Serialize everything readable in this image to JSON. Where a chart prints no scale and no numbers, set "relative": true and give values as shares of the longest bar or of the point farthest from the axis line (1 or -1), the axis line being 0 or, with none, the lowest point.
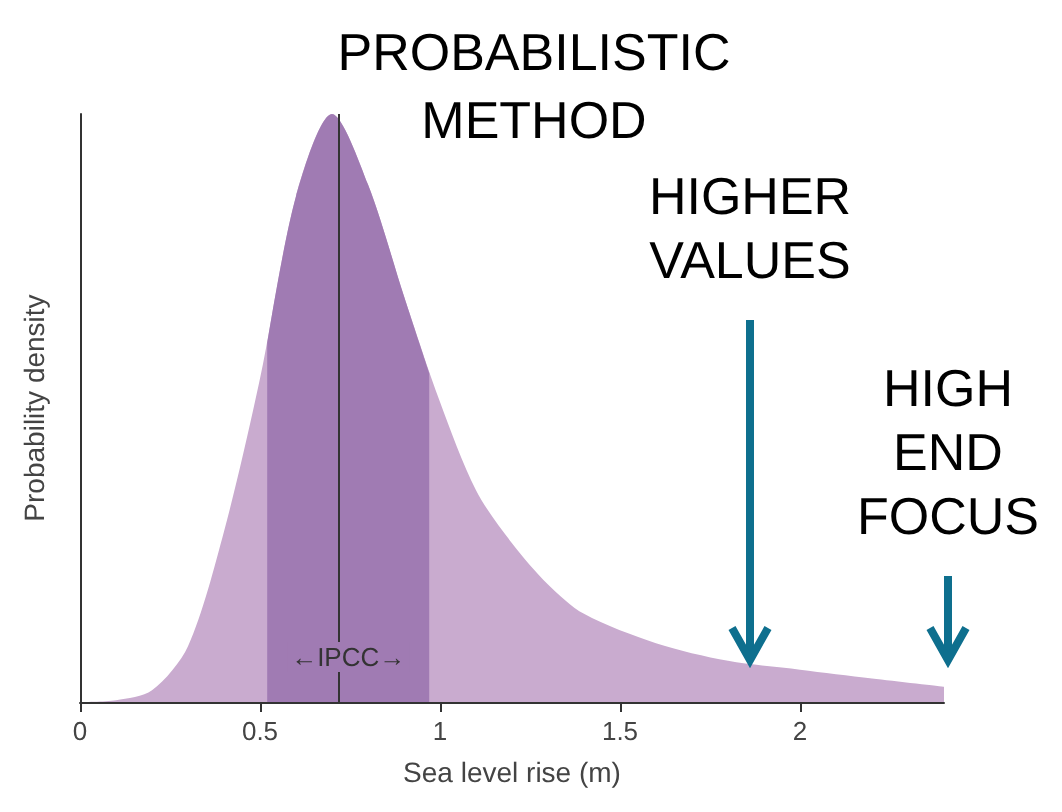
{
  "chart_data": {
    "type": "area",
    "relative": true,
    "title": "PROBABILISTIC METHOD",
    "xlabel": "Sea level rise (m)",
    "ylabel": "Probability density",
    "x": [
      0,
      0.1,
      0.2,
      0.3,
      0.4,
      0.5,
      0.6,
      0.7,
      0.8,
      0.9,
      1.0,
      1.1,
      1.2,
      1.3,
      1.4,
      1.6,
      1.8,
      2.0,
      2.2,
      2.4
    ],
    "series": [
      {
        "color": "#c9abcf",
        "values": [
          0,
          0.003,
          0.02,
          0.095,
          0.29,
          0.55,
          0.86,
          1.0,
          0.88,
          0.69,
          0.51,
          0.36,
          0.27,
          0.2,
          0.15,
          0.1,
          0.07,
          0.055,
          0.04,
          0.026
        ]
      },
      {
        "color": "#a07bb3",
        "x": [
          0.52,
          0.6,
          0.7,
          0.8,
          0.9,
          0.97
        ],
        "values": [
          0.61,
          0.86,
          1.0,
          0.88,
          0.69,
          0.56
        ]
      }
    ],
    "xlim": [
      0,
      2.4
    ],
    "xticks": [
      0,
      0.5,
      1,
      1.5,
      2
    ],
    "ref_lines": [
      {
        "axis": "x",
        "value": 0.72,
        "color": "#333333"
      }
    ],
    "annotations": [
      "←IPCC→",
      "HIGHER VALUES",
      "HIGH END FOCUS"
    ],
    "grid": false
  }
}
